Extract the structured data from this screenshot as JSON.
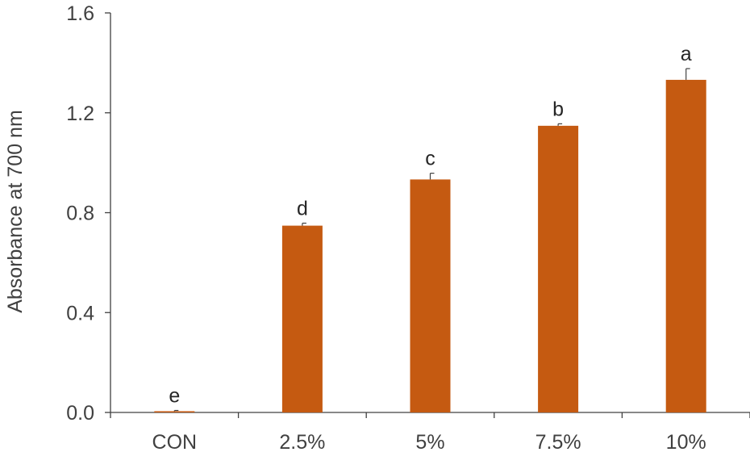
{
  "chart_data": {
    "type": "bar",
    "categories": [
      "CON",
      "2.5%",
      "5%",
      "7.5%",
      "10%"
    ],
    "values": [
      0.005,
      0.748,
      0.933,
      1.148,
      1.332
    ],
    "errors": [
      0.003,
      0.01,
      0.025,
      0.008,
      0.045
    ],
    "significance_labels": [
      "e",
      "d",
      "c",
      "b",
      "a"
    ],
    "title": "",
    "xlabel": "",
    "ylabel": "Absorbance at 700 nm",
    "ylim": [
      0,
      1.6
    ],
    "yticks": [
      0.0,
      0.4,
      0.8,
      1.2,
      1.6
    ],
    "ytick_labels": [
      "0.0",
      "0.4",
      "0.8",
      "1.2",
      "1.6"
    ],
    "grid": false,
    "bar_color": "#c55a11",
    "axis_color": "#404040"
  }
}
